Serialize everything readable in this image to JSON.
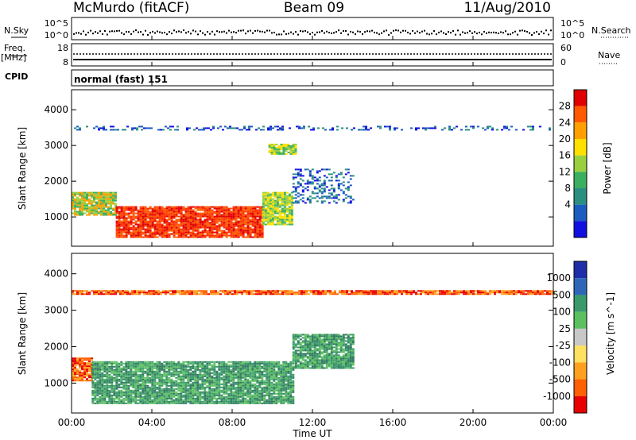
{
  "header": {
    "station": "McMurdo (fitACF)",
    "beam": "Beam 09",
    "date": "11/Aug/2010"
  },
  "noise_panel": {
    "left_label": "N.Sky",
    "right_label": "N.Search",
    "right_ticks": [
      "10^5",
      "10^0"
    ],
    "left_ticks": [
      "10^5",
      "10^0"
    ]
  },
  "freq_panel": {
    "left_label": "Freq.",
    "left_unit": "[MHz]",
    "left_ticks": [
      "18",
      "8"
    ],
    "right_label": "Nave",
    "right_ticks": [
      "60",
      "0"
    ]
  },
  "cpid_panel": {
    "label": "CPID",
    "text": "normal (fast) 151"
  },
  "x_axis": {
    "label": "Time UT",
    "ticks": [
      "00:00",
      "04:00",
      "08:00",
      "12:00",
      "16:00",
      "20:00",
      "00:00"
    ]
  },
  "chart_data": [
    {
      "type": "heatmap",
      "title": "Power",
      "ylabel": "Slant Range [km]",
      "xlabel": "Time UT",
      "x_hours_range": [
        0,
        24
      ],
      "y_range_km": [
        180,
        4560
      ],
      "y_ticks": [
        "1000",
        "2000",
        "3000",
        "4000"
      ],
      "colorbar": {
        "label": "Power [dB]",
        "tick_labels": [
          "28",
          "24",
          "20",
          "16",
          "12",
          "8",
          "4"
        ],
        "colors": [
          "#e00000",
          "#ff5a00",
          "#ffa000",
          "#ffe000",
          "#9ad040",
          "#3cb060",
          "#2a8f80",
          "#1a5cc0",
          "#1010e0"
        ]
      },
      "regions": [
        {
          "t0": 0.0,
          "t1": 2.2,
          "r0": 1050,
          "r1": 1700,
          "level": "mid-high"
        },
        {
          "t0": 2.2,
          "t1": 9.5,
          "r0": 450,
          "r1": 1300,
          "level": "high"
        },
        {
          "t0": 9.5,
          "t1": 11.0,
          "r0": 800,
          "r1": 1700,
          "level": "mid"
        },
        {
          "t0": 9.8,
          "t1": 11.2,
          "r0": 2750,
          "r1": 3050,
          "level": "mid"
        },
        {
          "t0": 11.0,
          "t1": 14.0,
          "r0": 1400,
          "r1": 2350,
          "level": "low"
        },
        {
          "t0": 0.0,
          "t1": 24.0,
          "r0": 3450,
          "r1": 3550,
          "level": "low"
        }
      ]
    },
    {
      "type": "heatmap",
      "title": "Velocity",
      "ylabel": "Slant Range [km]",
      "xlabel": "Time UT",
      "x_hours_range": [
        0,
        24
      ],
      "y_range_km": [
        180,
        4560
      ],
      "y_ticks": [
        "1000",
        "2000",
        "3000",
        "4000"
      ],
      "colorbar": {
        "label": "Velocity [m s^-1]",
        "tick_labels": [
          "1000",
          "500",
          "100",
          "25",
          "-25",
          "-100",
          "-500",
          "-1000"
        ],
        "colors": [
          "#1e2ea8",
          "#2f66b8",
          "#3a9a6a",
          "#5cc060",
          "#c8c8c8",
          "#ffe060",
          "#ffa020",
          "#ff6000",
          "#e80000"
        ]
      },
      "regions": [
        {
          "t0": 0.0,
          "t1": 1.0,
          "r0": 1050,
          "r1": 1700,
          "level": "negative"
        },
        {
          "t0": 1.0,
          "t1": 11.0,
          "r0": 450,
          "r1": 1600,
          "level": "positive"
        },
        {
          "t0": 11.0,
          "t1": 14.0,
          "r0": 1400,
          "r1": 2350,
          "level": "positive"
        },
        {
          "t0": 0.0,
          "t1": 24.0,
          "r0": 3450,
          "r1": 3550,
          "level": "negative"
        }
      ]
    }
  ]
}
